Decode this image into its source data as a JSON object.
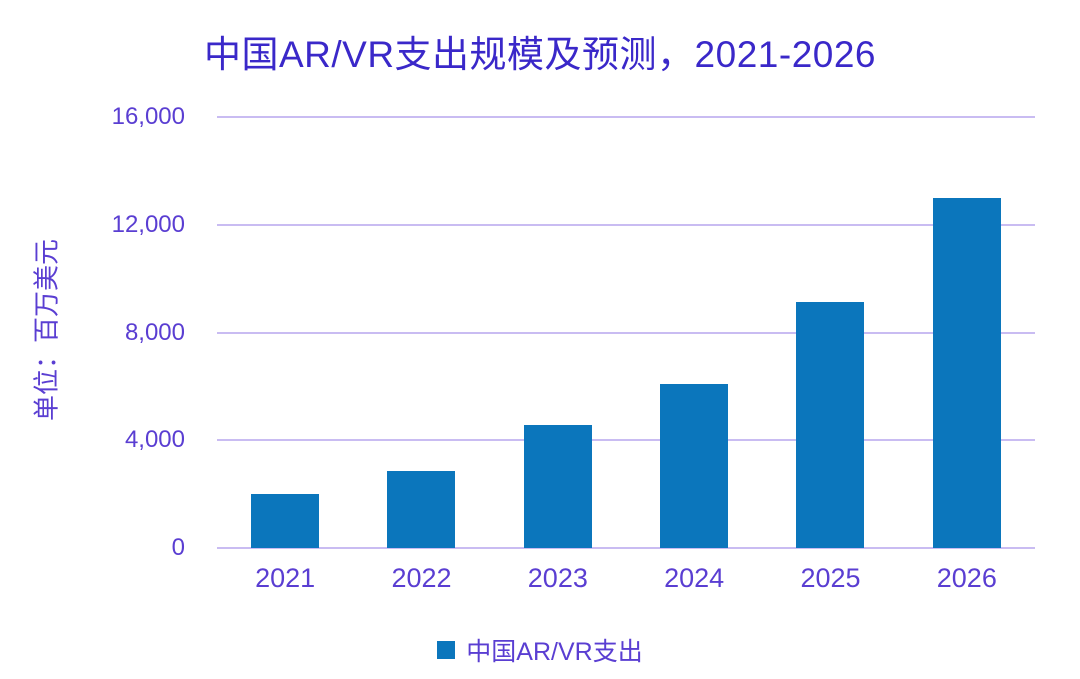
{
  "chart": {
    "title": "中国AR/VR支出规模及预测，2021-2026",
    "y_axis_title": "单位：百万美元",
    "legend_label": "中国AR/VR支出"
  },
  "chart_data": {
    "type": "bar",
    "title": "中国AR/VR支出规模及预测，2021-2026",
    "categories": [
      "2021",
      "2022",
      "2023",
      "2024",
      "2025",
      "2026"
    ],
    "values": [
      2000,
      2850,
      4550,
      6100,
      9150,
      13000
    ],
    "series": [
      {
        "name": "中国AR/VR支出",
        "values": [
          2000,
          2850,
          4550,
          6100,
          9150,
          13000
        ]
      }
    ],
    "xlabel": "",
    "ylabel": "单位：百万美元",
    "ylim": [
      0,
      16000
    ],
    "ytick_interval": 4000,
    "ytick_labels": [
      "0",
      "4,000",
      "8,000",
      "12,000",
      "16,000"
    ],
    "grid": true,
    "legend_position": "bottom",
    "colors": {
      "bar": "#0B76BC",
      "gridline": "#C9BCF2",
      "title_text": "#3A28C9",
      "axis_text": "#5A3ED2",
      "background": "#FFFFFF"
    }
  }
}
